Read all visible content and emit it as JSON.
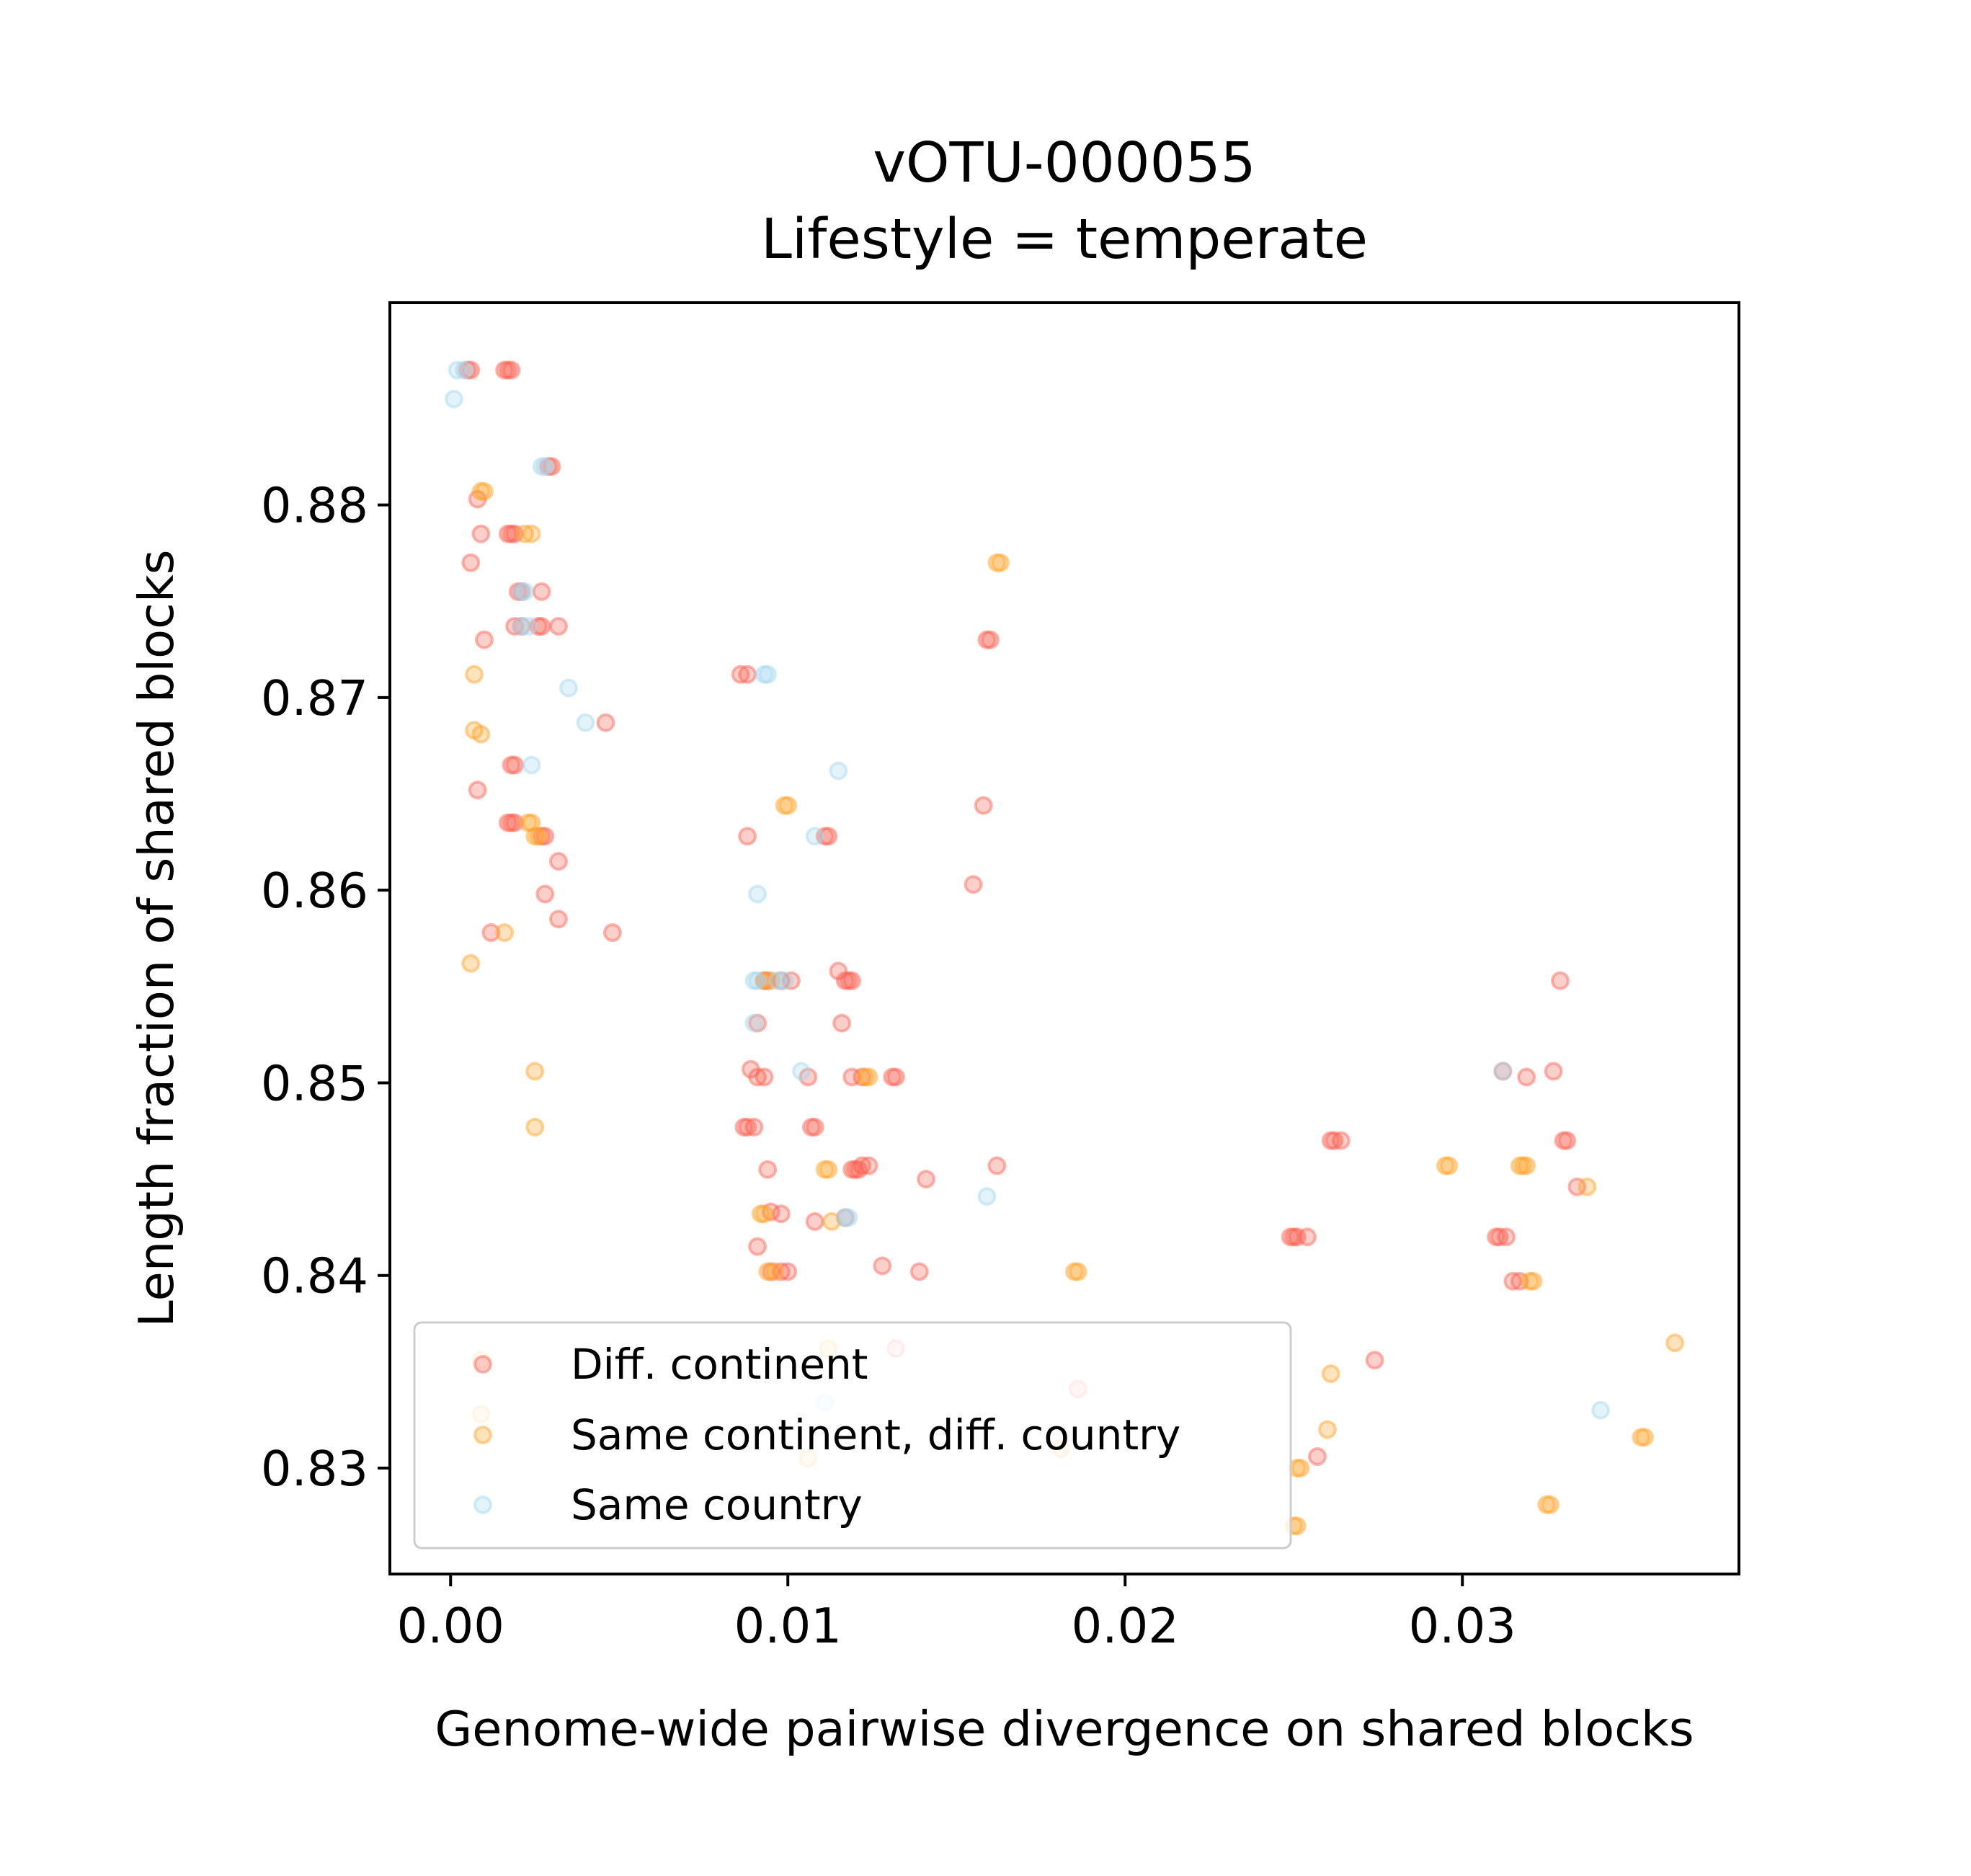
{
  "chart_data": {
    "type": "scatter",
    "title": "vOTU-000055",
    "subtitle": "Lifestyle = temperate",
    "xlabel": "Genome-wide pairwise divergence on shared blocks",
    "ylabel": "Length fraction of shared blocks",
    "xlim": [
      -0.0018,
      0.0382
    ],
    "ylim": [
      0.8245,
      0.8905
    ],
    "xticks": [
      0.0,
      0.01,
      0.02,
      0.03
    ],
    "xtick_labels": [
      "0.00",
      "0.01",
      "0.02",
      "0.03"
    ],
    "yticks": [
      0.83,
      0.84,
      0.85,
      0.86,
      0.87,
      0.88
    ],
    "ytick_labels": [
      "0.83",
      "0.84",
      "0.85",
      "0.86",
      "0.87",
      "0.88"
    ],
    "grid": false,
    "legend_position": "lower-left",
    "series": [
      {
        "name": "Diff. continent",
        "color": "#fa5f4f",
        "points": [
          [
            0.0005,
            0.887
          ],
          [
            0.0006,
            0.887
          ],
          [
            0.0016,
            0.887
          ],
          [
            0.0017,
            0.887
          ],
          [
            0.0018,
            0.887
          ],
          [
            0.003,
            0.882
          ],
          [
            0.0029,
            0.882
          ],
          [
            0.0008,
            0.8803
          ],
          [
            0.0009,
            0.8785
          ],
          [
            0.0017,
            0.8785
          ],
          [
            0.0018,
            0.8785
          ],
          [
            0.0019,
            0.8785
          ],
          [
            0.0006,
            0.877
          ],
          [
            0.002,
            0.8755
          ],
          [
            0.0021,
            0.8755
          ],
          [
            0.0027,
            0.8755
          ],
          [
            0.0019,
            0.8737
          ],
          [
            0.0021,
            0.8737
          ],
          [
            0.0026,
            0.8737
          ],
          [
            0.0027,
            0.8737
          ],
          [
            0.0032,
            0.8737
          ],
          [
            0.001,
            0.873
          ],
          [
            0.0046,
            0.8687
          ],
          [
            0.0018,
            0.8665
          ],
          [
            0.0019,
            0.8665
          ],
          [
            0.0008,
            0.8652
          ],
          [
            0.0017,
            0.8635
          ],
          [
            0.0018,
            0.8635
          ],
          [
            0.0019,
            0.8635
          ],
          [
            0.0027,
            0.8628
          ],
          [
            0.0028,
            0.8628
          ],
          [
            0.0032,
            0.8615
          ],
          [
            0.0028,
            0.8598
          ],
          [
            0.0032,
            0.8585
          ],
          [
            0.0012,
            0.8578
          ],
          [
            0.0048,
            0.8578
          ],
          [
            0.0086,
            0.8712
          ],
          [
            0.0088,
            0.8712
          ],
          [
            0.0088,
            0.8628
          ],
          [
            0.0111,
            0.8628
          ],
          [
            0.0112,
            0.8628
          ],
          [
            0.0093,
            0.8553
          ],
          [
            0.0094,
            0.8553
          ],
          [
            0.0098,
            0.8553
          ],
          [
            0.0101,
            0.8553
          ],
          [
            0.0115,
            0.8558
          ],
          [
            0.0117,
            0.8553
          ],
          [
            0.0118,
            0.8553
          ],
          [
            0.0119,
            0.8553
          ],
          [
            0.0091,
            0.8531
          ],
          [
            0.0116,
            0.8531
          ],
          [
            0.0089,
            0.8507
          ],
          [
            0.0091,
            0.8503
          ],
          [
            0.0093,
            0.8503
          ],
          [
            0.0106,
            0.8503
          ],
          [
            0.0119,
            0.8503
          ],
          [
            0.0122,
            0.8503
          ],
          [
            0.0131,
            0.8503
          ],
          [
            0.0132,
            0.8503
          ],
          [
            0.0087,
            0.8477
          ],
          [
            0.0088,
            0.8477
          ],
          [
            0.009,
            0.8477
          ],
          [
            0.0107,
            0.8477
          ],
          [
            0.0108,
            0.8477
          ],
          [
            0.0094,
            0.8455
          ],
          [
            0.0119,
            0.8455
          ],
          [
            0.012,
            0.8455
          ],
          [
            0.0121,
            0.8455
          ],
          [
            0.0122,
            0.8457
          ],
          [
            0.0124,
            0.8457
          ],
          [
            0.0141,
            0.845
          ],
          [
            0.0095,
            0.8433
          ],
          [
            0.0098,
            0.8432
          ],
          [
            0.0108,
            0.8428
          ],
          [
            0.0117,
            0.843
          ],
          [
            0.0091,
            0.8415
          ],
          [
            0.0095,
            0.8402
          ],
          [
            0.0098,
            0.8402
          ],
          [
            0.01,
            0.8402
          ],
          [
            0.0128,
            0.8405
          ],
          [
            0.0139,
            0.8402
          ],
          [
            0.016,
            0.873
          ],
          [
            0.0159,
            0.873
          ],
          [
            0.0158,
            0.8644
          ],
          [
            0.0155,
            0.8603
          ],
          [
            0.0162,
            0.8457
          ],
          [
            0.0132,
            0.8362
          ],
          [
            0.0186,
            0.8341
          ],
          [
            0.0261,
            0.847
          ],
          [
            0.0262,
            0.847
          ],
          [
            0.0264,
            0.847
          ],
          [
            0.0249,
            0.842
          ],
          [
            0.025,
            0.842
          ],
          [
            0.0251,
            0.842
          ],
          [
            0.0254,
            0.842
          ],
          [
            0.0274,
            0.8356
          ],
          [
            0.0257,
            0.8306
          ],
          [
            0.0329,
            0.8553
          ],
          [
            0.0312,
            0.8506
          ],
          [
            0.0319,
            0.8503
          ],
          [
            0.0327,
            0.8506
          ],
          [
            0.033,
            0.847
          ],
          [
            0.0331,
            0.847
          ],
          [
            0.0334,
            0.8446
          ],
          [
            0.031,
            0.842
          ],
          [
            0.0311,
            0.842
          ],
          [
            0.0313,
            0.842
          ],
          [
            0.0315,
            0.8397
          ],
          [
            0.0317,
            0.8397
          ]
        ]
      },
      {
        "name": "Same continent, diff. country",
        "color": "#ffa126",
        "points": [
          [
            0.0009,
            0.8807
          ],
          [
            0.001,
            0.8807
          ],
          [
            0.0022,
            0.8785
          ],
          [
            0.0024,
            0.8785
          ],
          [
            0.0007,
            0.8712
          ],
          [
            0.0007,
            0.8683
          ],
          [
            0.0009,
            0.8681
          ],
          [
            0.0023,
            0.8635
          ],
          [
            0.0024,
            0.8635
          ],
          [
            0.0025,
            0.8628
          ],
          [
            0.0026,
            0.8628
          ],
          [
            0.0016,
            0.8578
          ],
          [
            0.0006,
            0.8562
          ],
          [
            0.0025,
            0.8506
          ],
          [
            0.0025,
            0.8477
          ],
          [
            0.0099,
            0.8644
          ],
          [
            0.01,
            0.8644
          ],
          [
            0.0093,
            0.8553
          ],
          [
            0.0095,
            0.8553
          ],
          [
            0.0123,
            0.8503
          ],
          [
            0.0124,
            0.8503
          ],
          [
            0.0111,
            0.8455
          ],
          [
            0.0112,
            0.8455
          ],
          [
            0.0092,
            0.8432
          ],
          [
            0.0093,
            0.8432
          ],
          [
            0.0113,
            0.8428
          ],
          [
            0.0094,
            0.8402
          ],
          [
            0.0096,
            0.8402
          ],
          [
            0.0162,
            0.877
          ],
          [
            0.0163,
            0.877
          ],
          [
            0.0185,
            0.8402
          ],
          [
            0.0186,
            0.8402
          ],
          [
            0.0009,
            0.8356
          ],
          [
            0.0112,
            0.8362
          ],
          [
            0.0009,
            0.8328
          ],
          [
            0.0106,
            0.8305
          ],
          [
            0.0181,
            0.831
          ],
          [
            0.0261,
            0.8349
          ],
          [
            0.026,
            0.832
          ],
          [
            0.0251,
            0.83
          ],
          [
            0.0252,
            0.83
          ],
          [
            0.025,
            0.827
          ],
          [
            0.0251,
            0.827
          ],
          [
            0.0295,
            0.8457
          ],
          [
            0.0296,
            0.8457
          ],
          [
            0.0317,
            0.8457
          ],
          [
            0.0318,
            0.8457
          ],
          [
            0.0319,
            0.8457
          ],
          [
            0.0337,
            0.8446
          ],
          [
            0.032,
            0.8397
          ],
          [
            0.0321,
            0.8397
          ],
          [
            0.0363,
            0.8365
          ],
          [
            0.0353,
            0.8316
          ],
          [
            0.0354,
            0.8316
          ],
          [
            0.0325,
            0.8281
          ],
          [
            0.0326,
            0.8281
          ]
        ]
      },
      {
        "name": "Same country",
        "color": "#a3d8ee",
        "points": [
          [
            0.0001,
            0.8855
          ],
          [
            0.0002,
            0.887
          ],
          [
            0.0004,
            0.887
          ],
          [
            0.0027,
            0.882
          ],
          [
            0.0028,
            0.882
          ],
          [
            0.0021,
            0.8755
          ],
          [
            0.0022,
            0.8755
          ],
          [
            0.0021,
            0.8737
          ],
          [
            0.0023,
            0.8737
          ],
          [
            0.0035,
            0.8705
          ],
          [
            0.004,
            0.8687
          ],
          [
            0.0024,
            0.8665
          ],
          [
            0.0093,
            0.8712
          ],
          [
            0.0094,
            0.8712
          ],
          [
            0.0115,
            0.8662
          ],
          [
            0.0108,
            0.8628
          ],
          [
            0.0091,
            0.8598
          ],
          [
            0.009,
            0.8553
          ],
          [
            0.0091,
            0.8553
          ],
          [
            0.0097,
            0.8553
          ],
          [
            0.0099,
            0.8553
          ],
          [
            0.009,
            0.8531
          ],
          [
            0.0104,
            0.8506
          ],
          [
            0.0117,
            0.843
          ],
          [
            0.0118,
            0.843
          ],
          [
            0.0159,
            0.8441
          ],
          [
            0.0111,
            0.8334
          ],
          [
            0.0312,
            0.8506
          ],
          [
            0.0341,
            0.833
          ]
        ]
      }
    ]
  }
}
